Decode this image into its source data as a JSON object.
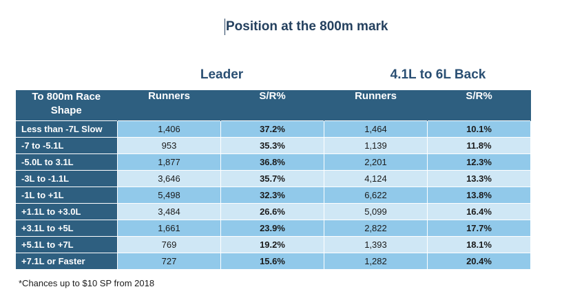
{
  "title": "Position at the 800m mark",
  "groups": {
    "leader": "Leader",
    "back": "4.1L to 6L Back"
  },
  "columns": {
    "shape": "To 800m Race Shape",
    "runners_a": "Runners",
    "sr_a": "S/R%",
    "runners_b": "Runners",
    "sr_b": "S/R%"
  },
  "rows": [
    {
      "shape": "Less than -7L Slow",
      "runners_a": "1,406",
      "sr_a": "37.2%",
      "runners_b": "1,464",
      "sr_b": "10.1%"
    },
    {
      "shape": "-7 to -5.1L",
      "runners_a": "953",
      "sr_a": "35.3%",
      "runners_b": "1,139",
      "sr_b": "11.8%"
    },
    {
      "shape": "-5.0L to 3.1L",
      "runners_a": "1,877",
      "sr_a": "36.8%",
      "runners_b": "2,201",
      "sr_b": "12.3%"
    },
    {
      "shape": "-3L to -1.1L",
      "runners_a": "3,646",
      "sr_a": "35.7%",
      "runners_b": "4,124",
      "sr_b": "13.3%"
    },
    {
      "shape": "-1L to +1L",
      "runners_a": "5,498",
      "sr_a": "32.3%",
      "runners_b": "6,622",
      "sr_b": "13.8%"
    },
    {
      "shape": "+1.1L to +3.0L",
      "runners_a": "3,484",
      "sr_a": "26.6%",
      "runners_b": "5,099",
      "sr_b": "16.4%"
    },
    {
      "shape": "+3.1L to +5L",
      "runners_a": "1,661",
      "sr_a": "23.9%",
      "runners_b": "2,822",
      "sr_b": "17.7%"
    },
    {
      "shape": "+5.1L to +7L",
      "runners_a": "769",
      "sr_a": "19.2%",
      "runners_b": "1,393",
      "sr_b": "18.1%"
    },
    {
      "shape": "+7.1L or Faster",
      "runners_a": "727",
      "sr_a": "15.6%",
      "runners_b": "1,282",
      "sr_b": "20.4%"
    }
  ],
  "footnote": "*Chances up to $10 SP from 2018",
  "colors": {
    "header_bg": "#2e5f80",
    "row_dark": "#91c9ea",
    "row_light": "#cfe7f5",
    "title": "#24405e"
  }
}
